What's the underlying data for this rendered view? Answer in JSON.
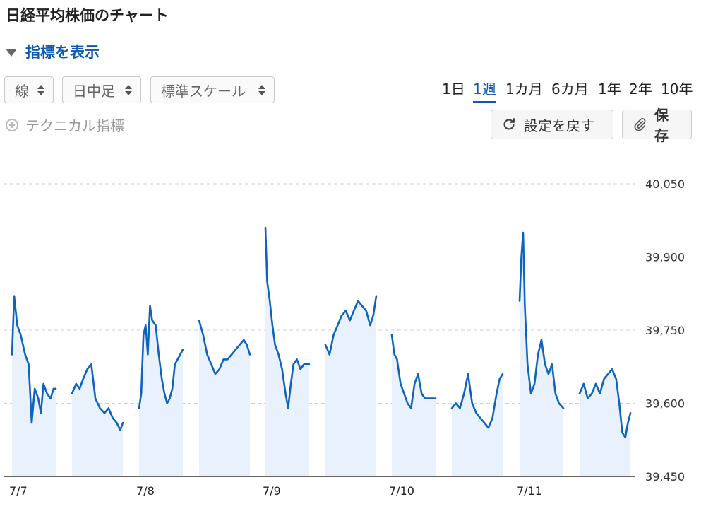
{
  "page": {
    "title": "日経平均株価のチャート",
    "indicator_toggle": "指標を表示",
    "selects": [
      {
        "value": "線"
      },
      {
        "value": "日中足"
      },
      {
        "value": "標準スケール"
      }
    ],
    "periods": [
      "1日",
      "1週",
      "1カ月",
      "6カ月",
      "1年",
      "2年",
      "10年"
    ],
    "active_period": "1週",
    "technical": "テクニカル指標",
    "reset_button": "設定を戻す",
    "save_button": "保存",
    "colors": {
      "accent": "#0b5ab0",
      "line": "#0d64bf",
      "fill": "#e9f1fc",
      "grid": "#cfcfcf"
    }
  },
  "chart_data": {
    "type": "area",
    "ylim": [
      39450,
      40050
    ],
    "y_ticks": [
      "40,050",
      "39,900",
      "39,750",
      "39,600",
      "39,450"
    ],
    "y_tick_values": [
      40050,
      39900,
      39750,
      39600,
      39450
    ],
    "x_tick_labels": [
      "7/7",
      "7/8",
      "7/9",
      "7/10",
      "7/11"
    ],
    "grid": true,
    "series": [
      {
        "date": "7/7",
        "sessions": [
          {
            "points": [
              [
                0,
                39700
              ],
              [
                0.05,
                39820
              ],
              [
                0.12,
                39760
              ],
              [
                0.2,
                39740
              ],
              [
                0.3,
                39700
              ],
              [
                0.38,
                39680
              ],
              [
                0.45,
                39560
              ],
              [
                0.52,
                39630
              ],
              [
                0.6,
                39610
              ],
              [
                0.66,
                39580
              ],
              [
                0.72,
                39640
              ],
              [
                0.8,
                39620
              ],
              [
                0.88,
                39610
              ],
              [
                0.95,
                39630
              ],
              [
                1,
                39630
              ]
            ]
          },
          {
            "points": [
              [
                0,
                39620
              ],
              [
                0.08,
                39640
              ],
              [
                0.15,
                39630
              ],
              [
                0.22,
                39650
              ],
              [
                0.3,
                39670
              ],
              [
                0.38,
                39680
              ],
              [
                0.46,
                39610
              ],
              [
                0.55,
                39590
              ],
              [
                0.64,
                39580
              ],
              [
                0.72,
                39590
              ],
              [
                0.8,
                39570
              ],
              [
                0.88,
                39560
              ],
              [
                0.95,
                39545
              ],
              [
                1,
                39560
              ]
            ]
          }
        ]
      },
      {
        "date": "7/8",
        "sessions": [
          {
            "points": [
              [
                0,
                39590
              ],
              [
                0.05,
                39620
              ],
              [
                0.1,
                39740
              ],
              [
                0.15,
                39760
              ],
              [
                0.2,
                39700
              ],
              [
                0.25,
                39800
              ],
              [
                0.3,
                39770
              ],
              [
                0.38,
                39760
              ],
              [
                0.45,
                39700
              ],
              [
                0.52,
                39650
              ],
              [
                0.58,
                39620
              ],
              [
                0.64,
                39600
              ],
              [
                0.7,
                39610
              ],
              [
                0.76,
                39630
              ],
              [
                0.82,
                39680
              ],
              [
                0.88,
                39690
              ],
              [
                0.94,
                39700
              ],
              [
                1,
                39710
              ]
            ]
          },
          {
            "points": [
              [
                0,
                39770
              ],
              [
                0.08,
                39740
              ],
              [
                0.16,
                39700
              ],
              [
                0.24,
                39680
              ],
              [
                0.32,
                39660
              ],
              [
                0.4,
                39670
              ],
              [
                0.48,
                39690
              ],
              [
                0.56,
                39690
              ],
              [
                0.64,
                39700
              ],
              [
                0.72,
                39710
              ],
              [
                0.8,
                39720
              ],
              [
                0.88,
                39730
              ],
              [
                0.94,
                39720
              ],
              [
                1,
                39700
              ]
            ]
          }
        ]
      },
      {
        "date": "7/9",
        "sessions": [
          {
            "points": [
              [
                0,
                39960
              ],
              [
                0.04,
                39850
              ],
              [
                0.1,
                39810
              ],
              [
                0.16,
                39760
              ],
              [
                0.22,
                39720
              ],
              [
                0.3,
                39700
              ],
              [
                0.38,
                39670
              ],
              [
                0.46,
                39620
              ],
              [
                0.52,
                39590
              ],
              [
                0.58,
                39640
              ],
              [
                0.64,
                39680
              ],
              [
                0.72,
                39690
              ],
              [
                0.8,
                39670
              ],
              [
                0.88,
                39680
              ],
              [
                0.95,
                39680
              ],
              [
                1,
                39680
              ]
            ]
          },
          {
            "points": [
              [
                0,
                39720
              ],
              [
                0.08,
                39700
              ],
              [
                0.16,
                39740
              ],
              [
                0.24,
                39760
              ],
              [
                0.32,
                39780
              ],
              [
                0.4,
                39790
              ],
              [
                0.48,
                39770
              ],
              [
                0.56,
                39790
              ],
              [
                0.64,
                39810
              ],
              [
                0.72,
                39800
              ],
              [
                0.8,
                39790
              ],
              [
                0.88,
                39760
              ],
              [
                0.94,
                39780
              ],
              [
                1,
                39820
              ]
            ]
          }
        ]
      },
      {
        "date": "7/10",
        "sessions": [
          {
            "points": [
              [
                0,
                39740
              ],
              [
                0.06,
                39700
              ],
              [
                0.12,
                39690
              ],
              [
                0.2,
                39640
              ],
              [
                0.28,
                39620
              ],
              [
                0.36,
                39600
              ],
              [
                0.44,
                39590
              ],
              [
                0.52,
                39640
              ],
              [
                0.6,
                39660
              ],
              [
                0.68,
                39620
              ],
              [
                0.76,
                39610
              ],
              [
                0.84,
                39610
              ],
              [
                0.92,
                39610
              ],
              [
                1,
                39610
              ]
            ]
          },
          {
            "points": [
              [
                0,
                39590
              ],
              [
                0.08,
                39600
              ],
              [
                0.16,
                39590
              ],
              [
                0.24,
                39620
              ],
              [
                0.32,
                39660
              ],
              [
                0.4,
                39600
              ],
              [
                0.48,
                39580
              ],
              [
                0.56,
                39570
              ],
              [
                0.64,
                39560
              ],
              [
                0.72,
                39550
              ],
              [
                0.8,
                39570
              ],
              [
                0.88,
                39620
              ],
              [
                0.94,
                39650
              ],
              [
                1,
                39660
              ]
            ]
          }
        ]
      },
      {
        "date": "7/11",
        "sessions": [
          {
            "points": [
              [
                0,
                39810
              ],
              [
                0.04,
                39900
              ],
              [
                0.08,
                39950
              ],
              [
                0.12,
                39800
              ],
              [
                0.18,
                39680
              ],
              [
                0.26,
                39620
              ],
              [
                0.34,
                39640
              ],
              [
                0.42,
                39700
              ],
              [
                0.5,
                39730
              ],
              [
                0.58,
                39680
              ],
              [
                0.66,
                39660
              ],
              [
                0.74,
                39680
              ],
              [
                0.82,
                39620
              ],
              [
                0.9,
                39600
              ],
              [
                1,
                39590
              ]
            ]
          },
          {
            "points": [
              [
                0,
                39620
              ],
              [
                0.08,
                39640
              ],
              [
                0.16,
                39610
              ],
              [
                0.24,
                39620
              ],
              [
                0.32,
                39640
              ],
              [
                0.4,
                39620
              ],
              [
                0.48,
                39650
              ],
              [
                0.56,
                39660
              ],
              [
                0.64,
                39670
              ],
              [
                0.72,
                39650
              ],
              [
                0.78,
                39600
              ],
              [
                0.84,
                39540
              ],
              [
                0.9,
                39530
              ],
              [
                0.95,
                39560
              ],
              [
                1,
                39580
              ]
            ]
          }
        ]
      }
    ]
  }
}
